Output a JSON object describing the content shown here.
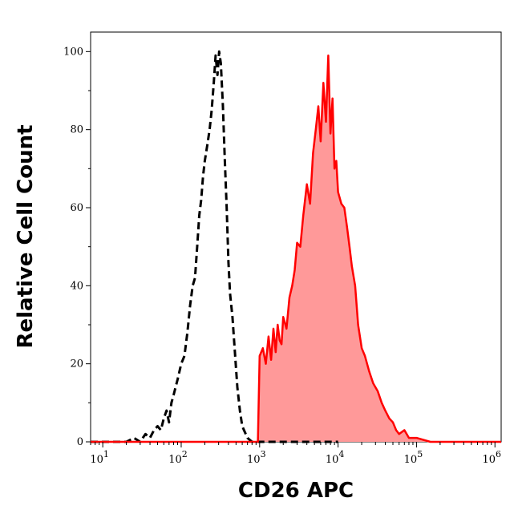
{
  "chart_data": {
    "type": "area",
    "title": "",
    "xlabel": "CD26 APC",
    "ylabel": "Relative Cell Count",
    "x_scale": "log",
    "xlim": [
      7,
      1200000
    ],
    "ylim": [
      0,
      105
    ],
    "grid": false,
    "legend": "none",
    "x_ticks": [
      {
        "value": 10,
        "base": "10",
        "exp": "1"
      },
      {
        "value": 100,
        "base": "10",
        "exp": "2"
      },
      {
        "value": 1000,
        "base": "10",
        "exp": "3"
      },
      {
        "value": 10000,
        "base": "10",
        "exp": "4"
      },
      {
        "value": 100000,
        "base": "10",
        "exp": "5"
      },
      {
        "value": 1000000,
        "base": "10",
        "exp": "6"
      }
    ],
    "y_ticks": [
      {
        "value": 0,
        "label": "0"
      },
      {
        "value": 20,
        "label": "20"
      },
      {
        "value": 40,
        "label": "40"
      },
      {
        "value": 60,
        "label": "60"
      },
      {
        "value": 80,
        "label": "80"
      },
      {
        "value": 100,
        "label": "100"
      }
    ],
    "series": [
      {
        "style": "dashed",
        "color": "#000000",
        "fill": "none",
        "x": [
          7,
          20,
          25,
          30,
          35,
          40,
          45,
          50,
          55,
          60,
          65,
          70,
          75,
          80,
          90,
          100,
          110,
          120,
          130,
          140,
          150,
          160,
          170,
          180,
          190,
          200,
          215,
          230,
          245,
          260,
          275,
          290,
          305,
          320,
          340,
          360,
          380,
          400,
          420,
          450,
          480,
          520,
          560,
          600,
          700,
          800,
          1000,
          2000,
          5000,
          10000
        ],
        "y": [
          0,
          0,
          1,
          0,
          2,
          1,
          3,
          4,
          3,
          6,
          8,
          5,
          10,
          12,
          16,
          20,
          22,
          28,
          35,
          40,
          42,
          50,
          58,
          62,
          68,
          72,
          76,
          80,
          85,
          92,
          99,
          94,
          100,
          97,
          86,
          72,
          60,
          46,
          38,
          32,
          24,
          14,
          8,
          4,
          1,
          0,
          0,
          0,
          0,
          0
        ]
      },
      {
        "style": "solid",
        "color": "#ff0000",
        "fill": "#ff9999",
        "x": [
          7,
          950,
          1000,
          1100,
          1200,
          1300,
          1400,
          1500,
          1600,
          1700,
          1800,
          1900,
          2000,
          2200,
          2400,
          2600,
          2800,
          3000,
          3300,
          3600,
          4000,
          4400,
          4800,
          5200,
          5600,
          6000,
          6500,
          7000,
          7500,
          8000,
          8500,
          9000,
          9500,
          10000,
          11000,
          12000,
          13000,
          14000,
          15000,
          16500,
          18000,
          20000,
          22000,
          25000,
          28000,
          32000,
          36000,
          40000,
          45000,
          50000,
          55000,
          60000,
          70000,
          80000,
          100000,
          150000,
          300000,
          1200000
        ],
        "y": [
          0,
          0,
          22,
          24,
          20,
          27,
          21,
          29,
          23,
          30,
          26,
          25,
          32,
          29,
          37,
          40,
          44,
          51,
          50,
          58,
          66,
          61,
          74,
          80,
          86,
          77,
          92,
          82,
          99,
          79,
          88,
          70,
          72,
          64,
          61,
          60,
          55,
          50,
          45,
          40,
          30,
          24,
          22,
          18,
          15,
          13,
          10,
          8,
          6,
          5,
          3,
          2,
          3,
          1,
          1,
          0,
          0,
          0
        ]
      }
    ]
  }
}
